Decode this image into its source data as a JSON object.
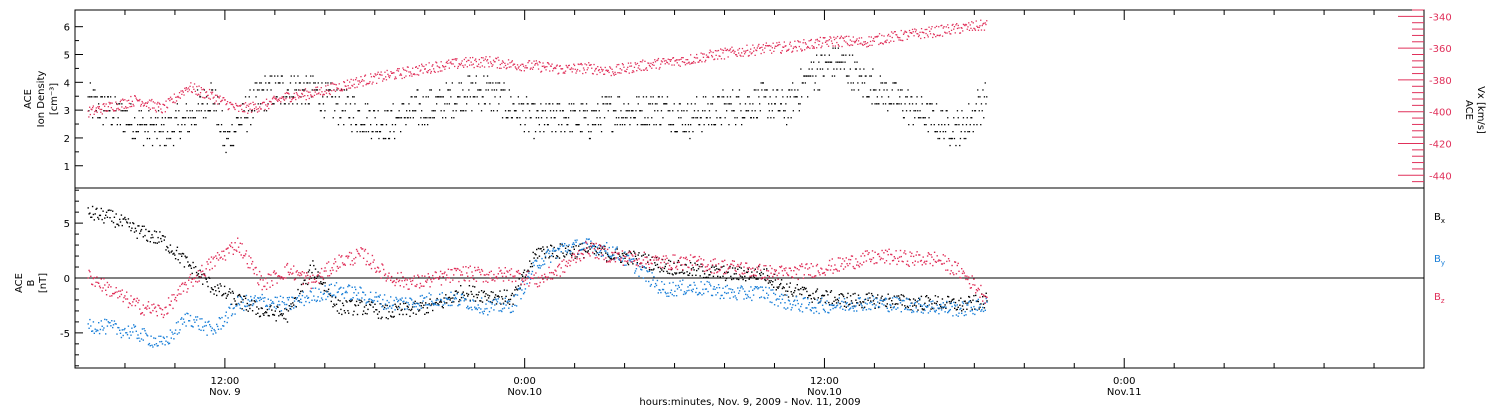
{
  "colors": {
    "black": "#000000",
    "pink": "#e0305a",
    "blue": "#1a7fd8"
  },
  "footer_label": "hours:minutes, Nov.  9, 2009 - Nov. 11, 2009",
  "chart_data": [
    {
      "type": "scatter",
      "panel": "top",
      "left_axis": {
        "label_lines": [
          "ACE",
          "Ion Density",
          "[cm⁻³]"
        ],
        "ylim": [
          0.2,
          6.6
        ],
        "ticks": [
          1,
          2,
          3,
          4,
          5,
          6
        ],
        "tick_labels": [
          "1",
          "2",
          "3",
          "4",
          "5",
          "6"
        ]
      },
      "right_axis": {
        "label_lines": [
          "ACE",
          "Vx [km/s]"
        ],
        "ylim": [
          -448,
          -336
        ],
        "ticks": [
          -440,
          -420,
          -400,
          -380,
          -360,
          -340
        ],
        "tick_labels": [
          "-440",
          "-420",
          "-400",
          "-380",
          "-360",
          "-340"
        ],
        "color": "#e0305a"
      },
      "series": [
        {
          "color": "#000000",
          "axis": "left",
          "x": [
            6.5,
            7.5,
            8.5,
            9.5,
            10.5,
            11.5,
            12.0,
            12.5,
            13.5,
            14.5,
            15.5,
            16.5,
            17.5,
            18.5,
            19.5,
            20.5,
            21.5,
            22.5,
            23.5,
            24.5,
            25.5,
            26.5,
            27.5,
            28.5,
            29.5,
            30.5,
            31.5,
            32.5,
            33.5,
            34.5,
            35.5,
            36.5,
            37.5,
            38.5,
            39.5,
            40.5,
            41.5,
            42.5
          ],
          "y": [
            3.3,
            3.0,
            2.5,
            2.2,
            2.7,
            3.6,
            1.8,
            2.6,
            3.6,
            3.8,
            3.7,
            3.2,
            2.8,
            2.5,
            3.0,
            3.2,
            3.6,
            3.7,
            3.1,
            2.6,
            2.8,
            2.6,
            3.0,
            3.0,
            3.1,
            2.7,
            3.0,
            3.2,
            3.3,
            3.1,
            4.4,
            4.8,
            4.0,
            3.6,
            3.1,
            2.6,
            2.3,
            3.6
          ]
        },
        {
          "color": "#e0305a",
          "axis": "right",
          "x": [
            6.5,
            7.5,
            8.5,
            9.5,
            10.5,
            11.5,
            12.5,
            13.5,
            14.5,
            15.5,
            16.5,
            17.5,
            18.5,
            19.5,
            20.5,
            21.5,
            22.5,
            23.5,
            24.5,
            25.5,
            26.5,
            27.5,
            28.5,
            29.5,
            30.5,
            31.5,
            32.5,
            33.5,
            34.5,
            35.5,
            36.5,
            37.5,
            38.5,
            39.5,
            40.5,
            41.5,
            42.5
          ],
          "y": [
            -400,
            -396,
            -392,
            -398,
            -384,
            -390,
            -398,
            -396,
            -390,
            -388,
            -384,
            -380,
            -377,
            -374,
            -371,
            -369,
            -368,
            -370,
            -371,
            -373,
            -372,
            -374,
            -371,
            -369,
            -367,
            -364,
            -362,
            -360,
            -359,
            -357,
            -355,
            -356,
            -353,
            -351,
            -349,
            -347,
            -345
          ]
        }
      ]
    },
    {
      "type": "scatter",
      "panel": "bottom",
      "left_axis": {
        "label_lines": [
          "ACE",
          "B",
          "[nT]"
        ],
        "ylim": [
          -8.2,
          8.2
        ],
        "ticks": [
          -5,
          0,
          5
        ],
        "tick_labels": [
          "-5",
          "0",
          "5"
        ],
        "zero_line": true
      },
      "legend": [
        {
          "label": "Bx",
          "color": "#000000"
        },
        {
          "label": "By",
          "color": "#1a7fd8"
        },
        {
          "label": "Bz",
          "color": "#e0305a"
        }
      ],
      "legend_position": "right",
      "series": [
        {
          "name": "Bx",
          "color": "#000000",
          "x": [
            6.5,
            7.5,
            8.5,
            9.5,
            10.5,
            11.5,
            12.5,
            13.5,
            14.5,
            15.5,
            16.5,
            17.5,
            18.5,
            19.5,
            20.5,
            21.5,
            22.5,
            23.5,
            24.5,
            25.5,
            26.5,
            27.5,
            28.5,
            29.5,
            30.5,
            31.5,
            32.5,
            33.5,
            34.5,
            35.5,
            36.5,
            37.5,
            38.5,
            39.5,
            40.5,
            41.5,
            42.5
          ],
          "y": [
            6.0,
            5.5,
            4.3,
            3.5,
            1.3,
            -0.8,
            -2.0,
            -3.0,
            -3.3,
            1.0,
            -2.6,
            -2.6,
            -3.1,
            -2.8,
            -2.4,
            -1.2,
            -1.5,
            -1.8,
            2.5,
            2.5,
            2.6,
            2.2,
            1.8,
            1.2,
            0.8,
            0.6,
            0.4,
            0.5,
            -1.0,
            -1.5,
            -1.9,
            -2.0,
            -2.0,
            -2.2,
            -2.2,
            -2.4,
            -2.0
          ]
        },
        {
          "name": "By",
          "color": "#1a7fd8",
          "x": [
            6.5,
            7.5,
            8.5,
            9.5,
            10.5,
            11.5,
            12.5,
            13.5,
            14.5,
            15.5,
            16.5,
            17.5,
            18.5,
            19.5,
            20.5,
            21.5,
            22.5,
            23.5,
            24.5,
            25.5,
            26.5,
            27.5,
            28.5,
            29.5,
            30.5,
            31.5,
            32.5,
            33.5,
            34.5,
            35.5,
            36.5,
            37.5,
            38.5,
            39.5,
            40.5,
            41.5,
            42.5
          ],
          "y": [
            -4.2,
            -4.5,
            -5.0,
            -6.0,
            -3.5,
            -4.8,
            -2.3,
            -2.0,
            -2.4,
            -1.5,
            -1.0,
            -1.5,
            -2.2,
            -2.2,
            -1.8,
            -2.0,
            -2.6,
            -2.4,
            1.5,
            2.8,
            3.0,
            2.5,
            1.0,
            -1.0,
            -0.8,
            -1.0,
            -1.4,
            -1.2,
            -2.2,
            -2.5,
            -2.4,
            -2.2,
            -2.3,
            -2.4,
            -2.6,
            -2.8,
            -2.4
          ]
        },
        {
          "name": "Bz",
          "color": "#e0305a",
          "x": [
            6.5,
            7.5,
            8.5,
            9.5,
            10.5,
            11.5,
            12.5,
            13.5,
            14.5,
            15.5,
            16.5,
            17.5,
            18.5,
            19.5,
            20.5,
            21.5,
            22.5,
            23.5,
            24.5,
            25.5,
            26.5,
            27.5,
            28.5,
            29.5,
            30.5,
            31.5,
            32.5,
            33.5,
            34.5,
            35.5,
            36.5,
            37.5,
            38.5,
            39.5,
            40.5,
            41.5,
            42.5
          ],
          "y": [
            0.3,
            -1.2,
            -2.5,
            -3.0,
            -0.5,
            1.5,
            3.2,
            -0.5,
            0.8,
            -0.3,
            1.5,
            2.2,
            0.2,
            -0.4,
            0.0,
            0.5,
            0.3,
            0.4,
            -0.2,
            1.0,
            2.8,
            2.0,
            1.8,
            1.5,
            1.5,
            1.2,
            1.0,
            0.6,
            0.5,
            0.8,
            1.2,
            1.8,
            2.0,
            1.8,
            1.8,
            0.5,
            -1.8
          ]
        }
      ]
    }
  ],
  "x_axis": {
    "xlim": [
      6,
      60
    ],
    "units": "hours since Nov. 9, 2009 0:00",
    "major_ticks": [
      {
        "x": 12,
        "time": "12:00",
        "date": "Nov. 9"
      },
      {
        "x": 24,
        "time": "0:00",
        "date": "Nov.10"
      },
      {
        "x": 36,
        "time": "12:00",
        "date": "Nov.10"
      },
      {
        "x": 48,
        "time": "0:00",
        "date": "Nov.11"
      }
    ]
  }
}
